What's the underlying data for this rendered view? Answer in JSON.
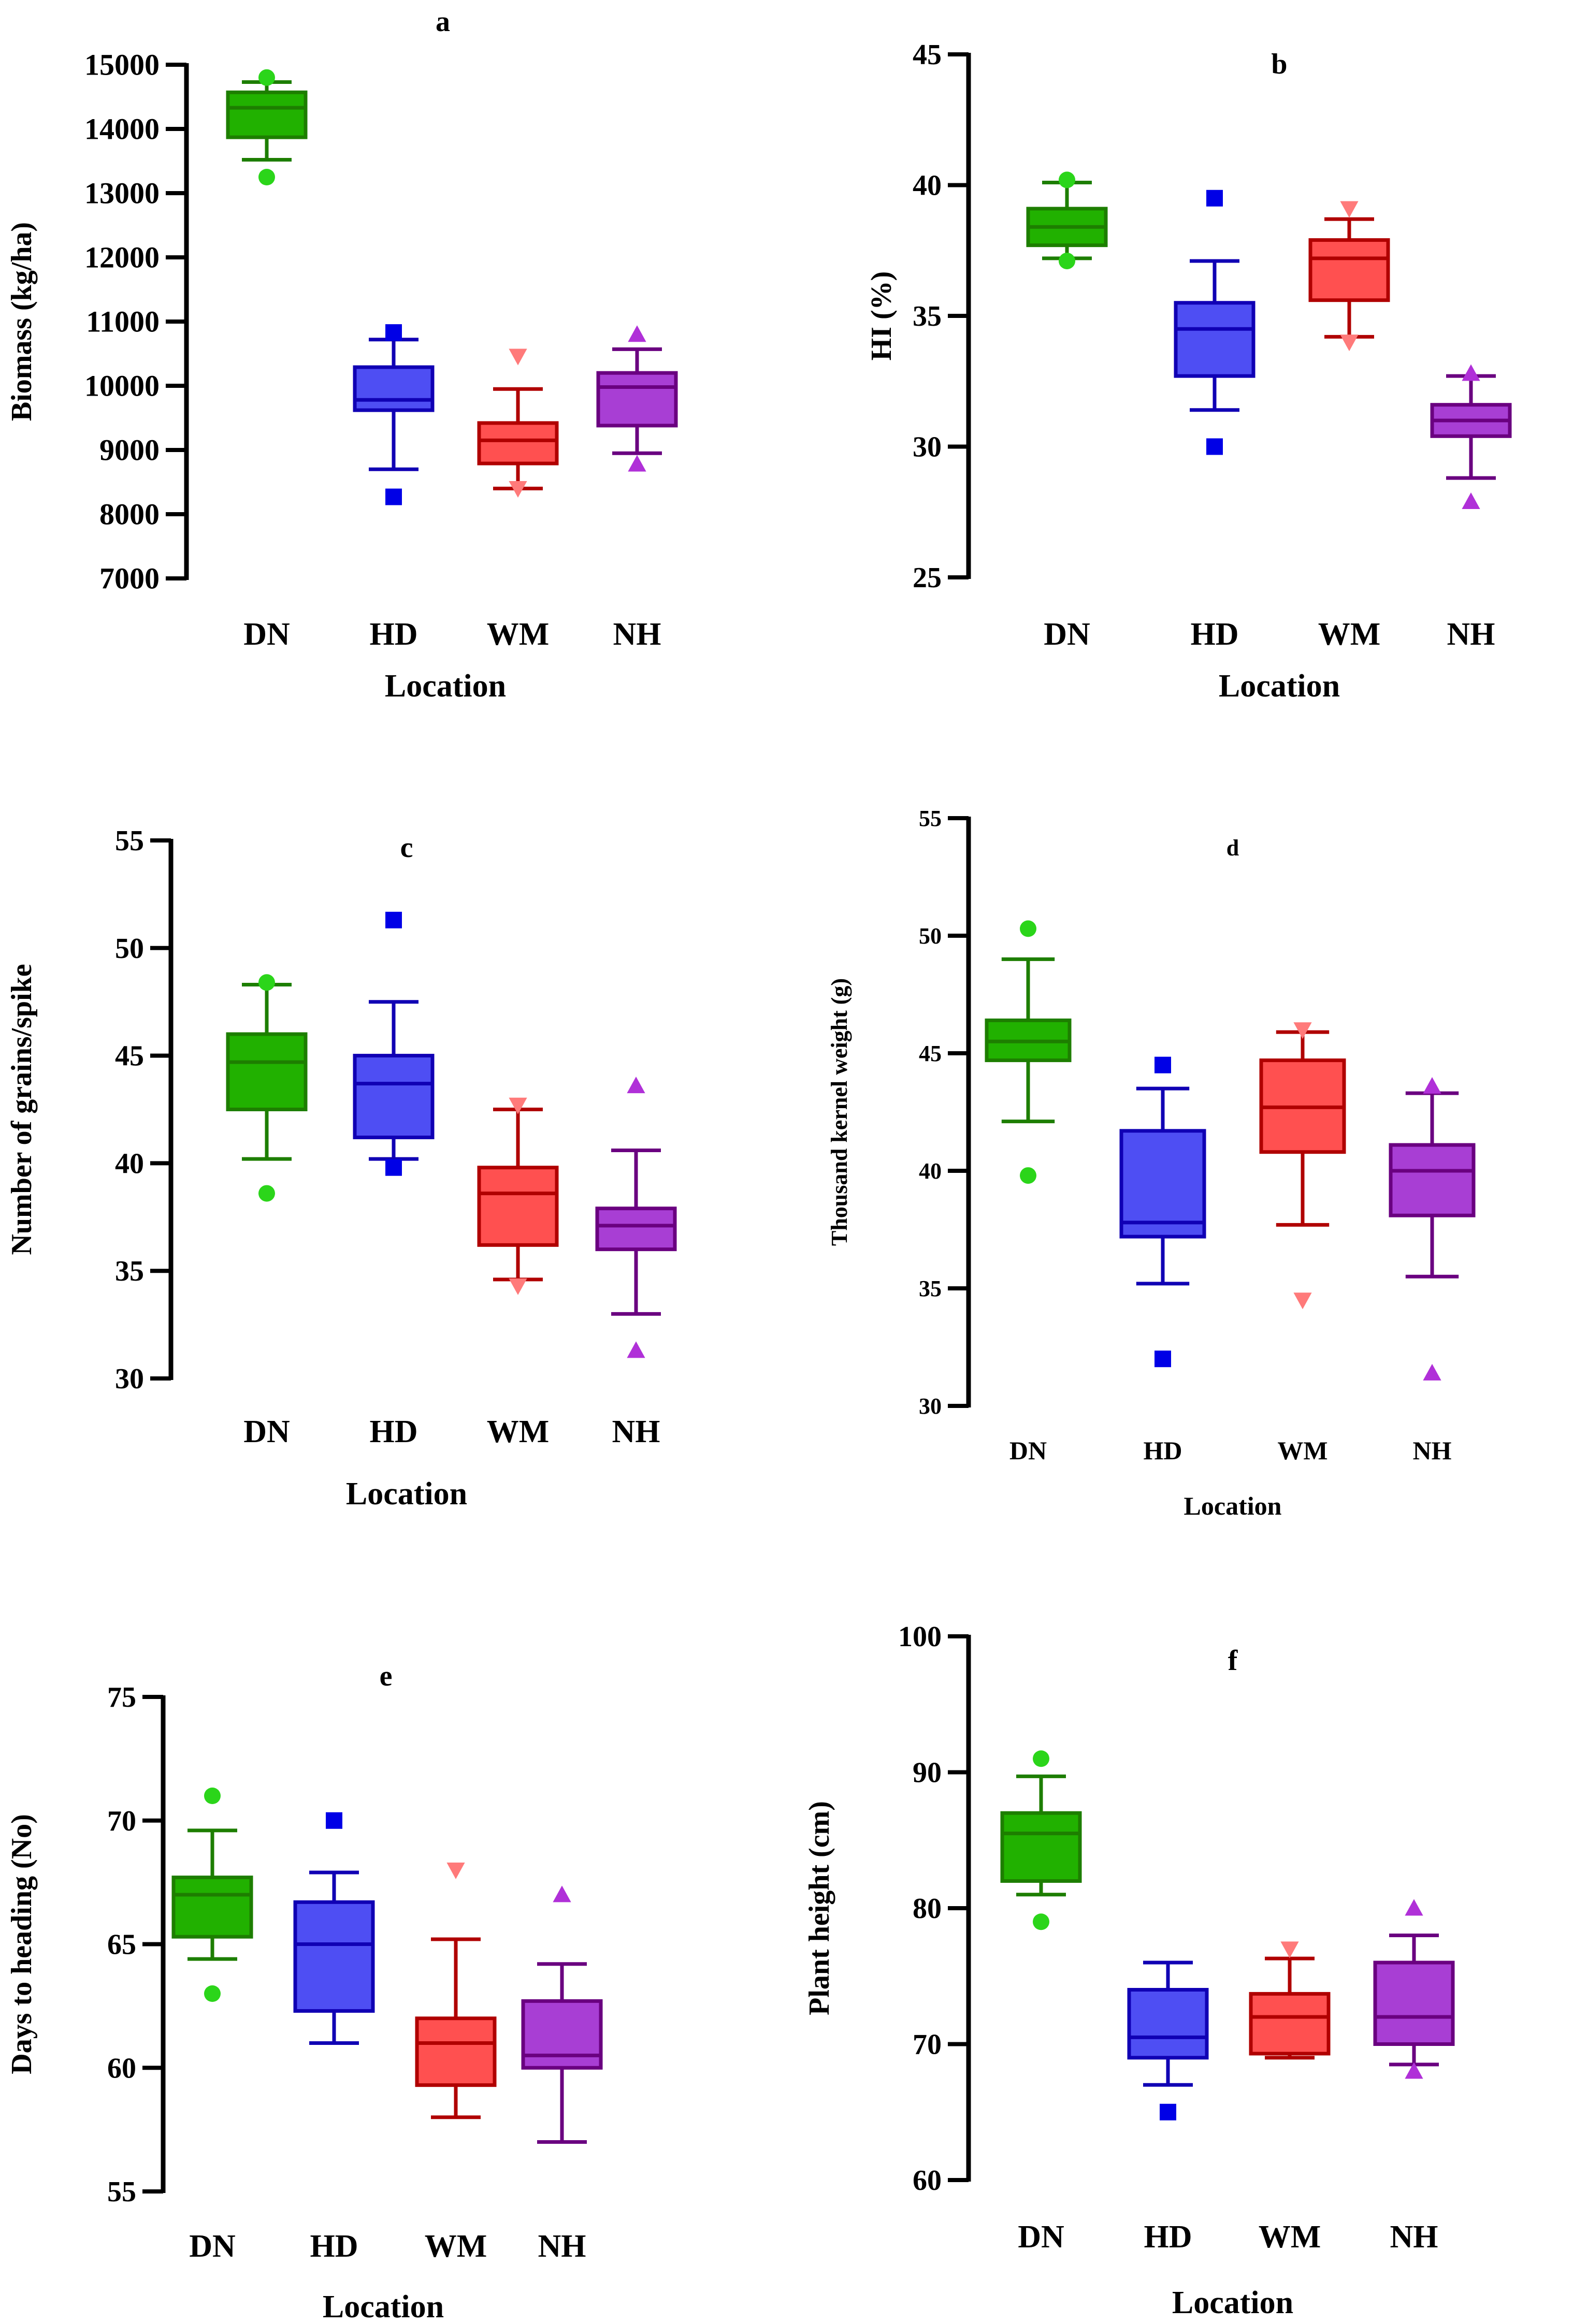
{
  "colors": {
    "DN": {
      "dark": "#1d7e00",
      "fill": "#21b100",
      "light": "#2bd51a"
    },
    "HD": {
      "dark": "#1000b4",
      "fill": "#4e4ef3",
      "light": "#0000e6"
    },
    "WM": {
      "dark": "#b00000",
      "fill": "#ff5050",
      "light": "#ff7a7a"
    },
    "NH": {
      "dark": "#6a0080",
      "fill": "#a83ed4",
      "light": "#b030d8"
    }
  },
  "markers": {
    "DN": "circle",
    "HD": "square",
    "WM": "triangle-down",
    "NH": "triangle-up"
  },
  "chart_data": [
    {
      "panel": "a",
      "type": "box",
      "title": "a",
      "xlabel": "Location",
      "ylabel": "Biomass (kg/ha)",
      "ylim": [
        7000,
        15000
      ],
      "yticks": [
        7000,
        8000,
        9000,
        10000,
        11000,
        12000,
        13000,
        14000,
        15000
      ],
      "categories": [
        "DN",
        "HD",
        "WM",
        "NH"
      ],
      "boxes": [
        {
          "name": "DN",
          "whisker_low": 13520,
          "q1": 13870,
          "median": 14330,
          "q3": 14570,
          "whisker_high": 14730,
          "outliers": [
            13250,
            14800
          ]
        },
        {
          "name": "HD",
          "whisker_low": 8700,
          "q1": 9620,
          "median": 9780,
          "q3": 10290,
          "whisker_high": 10720,
          "outliers": [
            8270,
            10830
          ]
        },
        {
          "name": "WM",
          "whisker_low": 8400,
          "q1": 8790,
          "median": 9150,
          "q3": 9420,
          "whisker_high": 9950,
          "outliers": [
            8400,
            10460
          ]
        },
        {
          "name": "NH",
          "whisker_low": 8950,
          "q1": 9380,
          "median": 9980,
          "q3": 10200,
          "whisker_high": 10570,
          "outliers": [
            8780,
            10800
          ]
        }
      ]
    },
    {
      "panel": "b",
      "type": "box",
      "title": "b",
      "xlabel": "Location",
      "ylabel": "HI (%)",
      "ylim": [
        25,
        45
      ],
      "yticks": [
        25,
        30,
        35,
        40,
        45
      ],
      "categories": [
        "DN",
        "HD",
        "WM",
        "NH"
      ],
      "boxes": [
        {
          "name": "DN",
          "whisker_low": 37.2,
          "q1": 37.7,
          "median": 38.4,
          "q3": 39.1,
          "whisker_high": 40.1,
          "outliers": [
            37.1,
            40.2
          ]
        },
        {
          "name": "HD",
          "whisker_low": 31.4,
          "q1": 32.7,
          "median": 34.5,
          "q3": 35.5,
          "whisker_high": 37.1,
          "outliers": [
            30.0,
            39.5
          ]
        },
        {
          "name": "WM",
          "whisker_low": 34.2,
          "q1": 35.6,
          "median": 37.2,
          "q3": 37.9,
          "whisker_high": 38.7,
          "outliers": [
            34.0,
            39.1
          ]
        },
        {
          "name": "NH",
          "whisker_low": 28.8,
          "q1": 30.4,
          "median": 31.0,
          "q3": 31.6,
          "whisker_high": 32.7,
          "outliers": [
            27.9,
            32.8
          ]
        }
      ]
    },
    {
      "panel": "c",
      "type": "box",
      "title": "c",
      "xlabel": "Location",
      "ylabel": "Number of grains/spike",
      "ylim": [
        30,
        55
      ],
      "yticks": [
        30,
        35,
        40,
        45,
        50,
        55
      ],
      "categories": [
        "DN",
        "HD",
        "WM",
        "NH"
      ],
      "boxes": [
        {
          "name": "DN",
          "whisker_low": 40.2,
          "q1": 42.5,
          "median": 44.7,
          "q3": 46.0,
          "whisker_high": 48.3,
          "outliers": [
            38.6,
            48.4
          ]
        },
        {
          "name": "HD",
          "whisker_low": 40.2,
          "q1": 41.2,
          "median": 43.7,
          "q3": 45.0,
          "whisker_high": 47.5,
          "outliers": [
            39.8,
            51.3
          ]
        },
        {
          "name": "WM",
          "whisker_low": 34.6,
          "q1": 36.2,
          "median": 38.6,
          "q3": 39.8,
          "whisker_high": 42.5,
          "outliers": [
            34.3,
            42.7
          ]
        },
        {
          "name": "NH",
          "whisker_low": 33.0,
          "q1": 36.0,
          "median": 37.1,
          "q3": 37.9,
          "whisker_high": 40.6,
          "outliers": [
            31.3,
            43.6
          ]
        }
      ]
    },
    {
      "panel": "d",
      "type": "box",
      "title": "d",
      "xlabel": "Location",
      "ylabel": "Thousand kernel weight (g)",
      "ylim": [
        30,
        55
      ],
      "yticks": [
        30,
        35,
        40,
        45,
        50,
        55
      ],
      "categories": [
        "DN",
        "HD",
        "WM",
        "NH"
      ],
      "boxes": [
        {
          "name": "DN",
          "whisker_low": 42.1,
          "q1": 44.7,
          "median": 45.5,
          "q3": 46.4,
          "whisker_high": 49.0,
          "outliers": [
            39.8,
            50.3
          ]
        },
        {
          "name": "HD",
          "whisker_low": 35.2,
          "q1": 37.2,
          "median": 37.8,
          "q3": 41.7,
          "whisker_high": 43.5,
          "outliers": [
            32.0,
            44.5
          ]
        },
        {
          "name": "WM",
          "whisker_low": 37.7,
          "q1": 40.8,
          "median": 42.7,
          "q3": 44.7,
          "whisker_high": 45.9,
          "outliers": [
            34.5,
            46.0
          ]
        },
        {
          "name": "NH",
          "whisker_low": 35.5,
          "q1": 38.1,
          "median": 40.0,
          "q3": 41.1,
          "whisker_high": 43.3,
          "outliers": [
            31.4,
            43.6
          ]
        }
      ]
    },
    {
      "panel": "e",
      "type": "box",
      "title": "e",
      "xlabel": "Location",
      "ylabel": "Days to heading (No)",
      "ylim": [
        55,
        75
      ],
      "yticks": [
        55,
        60,
        65,
        70,
        75
      ],
      "categories": [
        "DN",
        "HD",
        "WM",
        "NH"
      ],
      "boxes": [
        {
          "name": "DN",
          "whisker_low": 64.4,
          "q1": 65.3,
          "median": 67.0,
          "q3": 67.7,
          "whisker_high": 69.6,
          "outliers": [
            63.0,
            71.0
          ]
        },
        {
          "name": "HD",
          "whisker_low": 61.0,
          "q1": 62.3,
          "median": 65.0,
          "q3": 66.7,
          "whisker_high": 67.9,
          "outliers": [
            70.0
          ]
        },
        {
          "name": "WM",
          "whisker_low": 58.0,
          "q1": 59.3,
          "median": 61.0,
          "q3": 62.0,
          "whisker_high": 65.2,
          "outliers": [
            68.0
          ]
        },
        {
          "name": "NH",
          "whisker_low": 57.0,
          "q1": 60.0,
          "median": 60.5,
          "q3": 62.7,
          "whisker_high": 64.2,
          "outliers": [
            67.0
          ]
        }
      ]
    },
    {
      "panel": "f",
      "type": "box",
      "title": "f",
      "xlabel": "Location",
      "ylabel": "Plant height (cm)",
      "ylim": [
        60,
        100
      ],
      "yticks": [
        60,
        70,
        80,
        90,
        100
      ],
      "categories": [
        "DN",
        "HD",
        "WM",
        "NH"
      ],
      "boxes": [
        {
          "name": "DN",
          "whisker_low": 81.0,
          "q1": 82.0,
          "median": 85.5,
          "q3": 87.0,
          "whisker_high": 89.7,
          "outliers": [
            79.0,
            91.0
          ]
        },
        {
          "name": "HD",
          "whisker_low": 67.0,
          "q1": 69.0,
          "median": 70.5,
          "q3": 74.0,
          "whisker_high": 76.0,
          "outliers": [
            65.0
          ]
        },
        {
          "name": "WM",
          "whisker_low": 69.0,
          "q1": 69.3,
          "median": 72.0,
          "q3": 73.7,
          "whisker_high": 76.3,
          "outliers": [
            77.0
          ]
        },
        {
          "name": "NH",
          "whisker_low": 68.5,
          "q1": 70.0,
          "median": 72.0,
          "q3": 76.0,
          "whisker_high": 78.0,
          "outliers": [
            68.0,
            80.0
          ]
        }
      ]
    }
  ]
}
